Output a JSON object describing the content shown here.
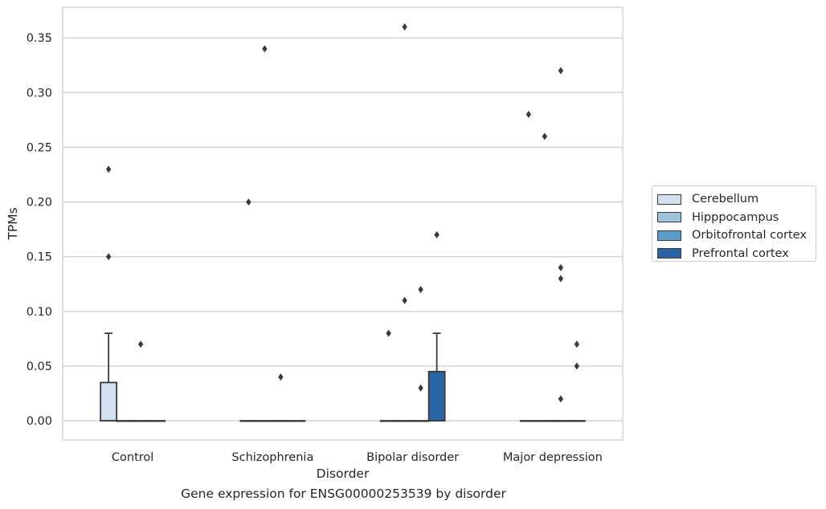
{
  "chart_data": {
    "type": "box",
    "xlabel": "Disorder",
    "ylabel": "TPMs",
    "caption": "Gene expression for ENSG00000253539 by disorder",
    "categories": [
      "Control",
      "Schizophrenia",
      "Bipolar disorder",
      "Major depression"
    ],
    "ylim": [
      -0.0175,
      0.378
    ],
    "yticks": [
      "0.00",
      "0.05",
      "0.10",
      "0.15",
      "0.20",
      "0.25",
      "0.30",
      "0.35"
    ],
    "ytick_values": [
      0,
      0.05,
      0.1,
      0.15,
      0.2,
      0.25,
      0.3,
      0.35
    ],
    "grid": "horizontal",
    "legend_position": "right",
    "series": [
      {
        "name": "Cerebellum",
        "color": "#d1e1f0",
        "boxes": [
          {
            "q1": 0,
            "median": 0,
            "q3": 0.035,
            "whisker_low": 0,
            "whisker_high": 0.08,
            "outliers": [
              0.15,
              0.23
            ]
          },
          {
            "q1": 0,
            "median": 0,
            "q3": 0,
            "whisker_low": 0,
            "whisker_high": 0,
            "outliers": [
              0.2
            ]
          },
          {
            "q1": 0,
            "median": 0,
            "q3": 0,
            "whisker_low": 0,
            "whisker_high": 0,
            "outliers": [
              0.08
            ]
          },
          {
            "q1": 0,
            "median": 0,
            "q3": 0,
            "whisker_low": 0,
            "whisker_high": 0,
            "outliers": [
              0.28
            ]
          }
        ]
      },
      {
        "name": "Hipppocampus",
        "color": "#9cc2dc",
        "boxes": [
          {
            "q1": 0,
            "median": 0,
            "q3": 0,
            "whisker_low": 0,
            "whisker_high": 0,
            "outliers": []
          },
          {
            "q1": 0,
            "median": 0,
            "q3": 0,
            "whisker_low": 0,
            "whisker_high": 0,
            "outliers": [
              0.34
            ]
          },
          {
            "q1": 0,
            "median": 0,
            "q3": 0,
            "whisker_low": 0,
            "whisker_high": 0,
            "outliers": [
              0.11,
              0.36
            ]
          },
          {
            "q1": 0,
            "median": 0,
            "q3": 0,
            "whisker_low": 0,
            "whisker_high": 0,
            "outliers": [
              0.26
            ]
          }
        ]
      },
      {
        "name": "Orbitofrontal cortex",
        "color": "#5b9bc8",
        "boxes": [
          {
            "q1": 0,
            "median": 0,
            "q3": 0,
            "whisker_low": 0,
            "whisker_high": 0,
            "outliers": [
              0.07
            ]
          },
          {
            "q1": 0,
            "median": 0,
            "q3": 0,
            "whisker_low": 0,
            "whisker_high": 0,
            "outliers": [
              0.04
            ]
          },
          {
            "q1": 0,
            "median": 0,
            "q3": 0,
            "whisker_low": 0,
            "whisker_high": 0,
            "outliers": [
              0.03,
              0.12
            ]
          },
          {
            "q1": 0,
            "median": 0,
            "q3": 0,
            "whisker_low": 0,
            "whisker_high": 0,
            "outliers": [
              0.02,
              0.13,
              0.14,
              0.32
            ]
          }
        ]
      },
      {
        "name": "Prefrontal cortex",
        "color": "#2a66a5",
        "boxes": [
          {
            "q1": 0,
            "median": 0,
            "q3": 0,
            "whisker_low": 0,
            "whisker_high": 0,
            "outliers": []
          },
          {
            "q1": 0,
            "median": 0,
            "q3": 0,
            "whisker_low": 0,
            "whisker_high": 0,
            "outliers": []
          },
          {
            "q1": 0,
            "median": 0,
            "q3": 0.045,
            "whisker_low": 0,
            "whisker_high": 0.08,
            "outliers": [
              0.17
            ]
          },
          {
            "q1": 0,
            "median": 0,
            "q3": 0,
            "whisker_low": 0,
            "whisker_high": 0,
            "outliers": [
              0.05,
              0.07
            ]
          }
        ]
      }
    ]
  }
}
